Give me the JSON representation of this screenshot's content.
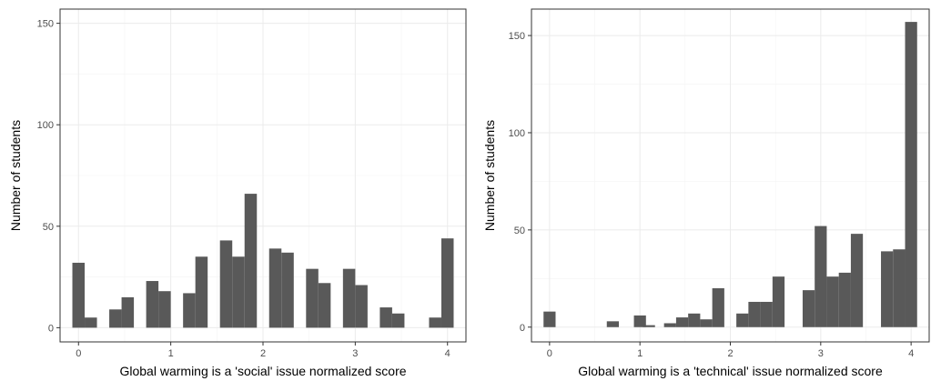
{
  "colors": {
    "bar": "#595959",
    "grid": "#ebebeb",
    "frame": "#333333",
    "text": "#4d4d4d"
  },
  "chart_data": [
    {
      "type": "bar",
      "panel": "social",
      "xlabel": "Global warming is a 'social' issue normalized score",
      "ylabel": "Number of students",
      "xlim": [
        -0.2,
        4.2
      ],
      "ylim": [
        -7,
        157
      ],
      "xticks": [
        0,
        1,
        2,
        3,
        4
      ],
      "yticks": [
        0,
        50,
        100,
        150
      ],
      "grid": true,
      "bin_width": 0.1333,
      "x": [
        0.0,
        0.1333,
        0.4,
        0.5333,
        0.8,
        0.9333,
        1.2,
        1.3333,
        1.6,
        1.7333,
        1.8667,
        2.1333,
        2.2667,
        2.5333,
        2.6667,
        2.9333,
        3.0667,
        3.3333,
        3.4667,
        3.8667,
        4.0
      ],
      "values": [
        32,
        5,
        9,
        15,
        23,
        18,
        17,
        35,
        43,
        35,
        66,
        39,
        37,
        29,
        22,
        29,
        21,
        10,
        7,
        5,
        44
      ]
    },
    {
      "type": "bar",
      "panel": "technical",
      "xlabel": "Global warming is a 'technical' issue normalized score",
      "ylabel": "Number of students",
      "xlim": [
        -0.2,
        4.2
      ],
      "ylim": [
        -7.6,
        163.6
      ],
      "xticks": [
        0,
        1,
        2,
        3,
        4
      ],
      "yticks": [
        0,
        50,
        100,
        150
      ],
      "grid": true,
      "bin_width": 0.1333,
      "x": [
        0.0,
        0.7,
        1.0,
        1.1,
        1.3333,
        1.4667,
        1.6,
        1.7333,
        1.8667,
        2.1333,
        2.2667,
        2.4,
        2.5333,
        2.8667,
        3.0,
        3.1333,
        3.2667,
        3.4,
        3.7333,
        3.8667,
        4.0
      ],
      "values": [
        8,
        3,
        6,
        1,
        2,
        5,
        7,
        4,
        20,
        7,
        13,
        13,
        26,
        19,
        52,
        26,
        28,
        48,
        39,
        40,
        157
      ]
    }
  ]
}
